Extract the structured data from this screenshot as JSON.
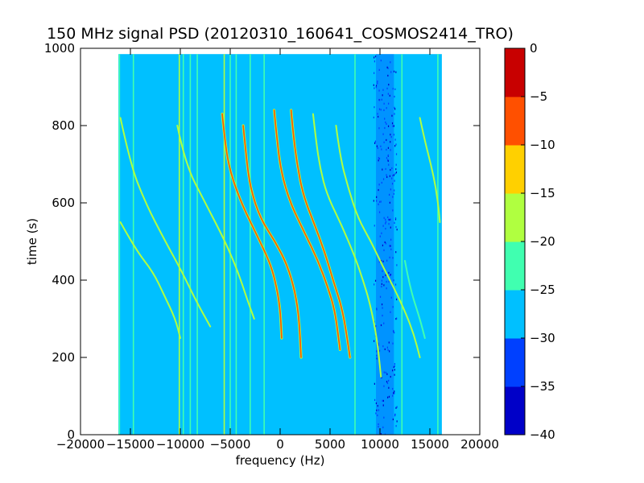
{
  "chart_data": {
    "type": "heatmap",
    "title": "150 MHz signal PSD (20120310_160641_COSMOS2414_TRO)",
    "xlabel": "frequency (Hz)",
    "ylabel": "time (s)",
    "xlim": [
      -20000,
      20000
    ],
    "ylim": [
      0,
      1000
    ],
    "x_ticks": [
      -20000,
      -15000,
      -10000,
      -5000,
      0,
      5000,
      10000,
      15000,
      20000
    ],
    "x_tick_labels": [
      "−20000",
      "−15000",
      "−10000",
      "−5000",
      "0",
      "5000",
      "10000",
      "15000",
      "20000"
    ],
    "y_ticks": [
      0,
      200,
      400,
      600,
      800,
      1000
    ],
    "y_tick_labels": [
      "0",
      "200",
      "400",
      "600",
      "800",
      "1000"
    ],
    "data_extent": {
      "freq": [
        -16200,
        16200
      ],
      "time": [
        0,
        985
      ]
    },
    "background_level": -27.5,
    "colorbar": {
      "levels": [
        -40,
        -35,
        -30,
        -25,
        -20,
        -15,
        -10,
        -5,
        0
      ],
      "tick_labels": [
        "−40",
        "−35",
        "−30",
        "−25",
        "−20",
        "−15",
        "−10",
        "−5",
        "0"
      ],
      "colors": [
        "#0000c8",
        "#0040ff",
        "#00c0ff",
        "#40ffb0",
        "#b0ff40",
        "#ffd000",
        "#ff5000",
        "#c80000"
      ]
    },
    "noise_band": {
      "freq_center": 10500,
      "width": 1800,
      "level": -31
    },
    "vertical_lines": [
      {
        "freq": -16100,
        "level": -22
      },
      {
        "freq": -14700,
        "level": -22
      },
      {
        "freq": -10100,
        "level": -17
      },
      {
        "freq": -9700,
        "level": -22
      },
      {
        "freq": -9000,
        "level": -24
      },
      {
        "freq": -8300,
        "level": -24
      },
      {
        "freq": -5600,
        "level": -20
      },
      {
        "freq": -5000,
        "level": -22
      },
      {
        "freq": -4400,
        "level": -22
      },
      {
        "freq": -3000,
        "level": -24
      },
      {
        "freq": -1600,
        "level": -22
      },
      {
        "freq": 7500,
        "level": -24
      },
      {
        "freq": 12200,
        "level": -24
      },
      {
        "freq": 15800,
        "level": -22
      }
    ],
    "drift_tracks": [
      {
        "t": [
          820,
          700,
          600,
          500,
          420,
          350,
          280
        ],
        "f": [
          -16000,
          -15000,
          -13500,
          -11500,
          -9800,
          -8500,
          -7000
        ],
        "level": -20
      },
      {
        "t": [
          550,
          480,
          420,
          360,
          300,
          250
        ],
        "f": [
          -16000,
          -14500,
          -12700,
          -11600,
          -10500,
          -10000
        ],
        "level": -20
      },
      {
        "t": [
          800,
          700,
          600,
          500,
          420,
          350,
          300
        ],
        "f": [
          -10300,
          -9500,
          -7500,
          -5500,
          -4200,
          -3300,
          -2600
        ],
        "level": -20
      },
      {
        "t": [
          830,
          750,
          680,
          600,
          520,
          450,
          400,
          330,
          250
        ],
        "f": [
          -5800,
          -5500,
          -5000,
          -3900,
          -2400,
          -1100,
          -500,
          0,
          150
        ],
        "level": -8
      },
      {
        "t": [
          800,
          720,
          640,
          560,
          500,
          440,
          370,
          300,
          200
        ],
        "f": [
          -3700,
          -3400,
          -3000,
          -2000,
          -500,
          700,
          1500,
          1900,
          2100
        ],
        "level": -8
      },
      {
        "t": [
          840,
          760,
          680,
          600,
          520,
          450,
          380,
          320,
          220
        ],
        "f": [
          -600,
          -300,
          100,
          1000,
          2500,
          3800,
          4800,
          5500,
          6000
        ],
        "level": -8
      },
      {
        "t": [
          840,
          780,
          700,
          620,
          540,
          470,
          400,
          320,
          200
        ],
        "f": [
          1100,
          1300,
          1700,
          2300,
          3500,
          4500,
          5300,
          6300,
          7000
        ],
        "level": -8
      },
      {
        "t": [
          830,
          760,
          690,
          620,
          540,
          460,
          400,
          340,
          250,
          150
        ],
        "f": [
          3300,
          3600,
          4000,
          4700,
          6200,
          7500,
          8300,
          9000,
          9700,
          10100
        ],
        "level": -20
      },
      {
        "t": [
          800,
          720,
          640,
          560,
          500,
          440,
          380,
          320,
          260,
          200
        ],
        "f": [
          5600,
          6000,
          6800,
          7800,
          9100,
          10200,
          11400,
          12500,
          13400,
          14000
        ],
        "level": -20
      },
      {
        "t": [
          820,
          760,
          700,
          640,
          580,
          550
        ],
        "f": [
          14000,
          14500,
          15100,
          15600,
          15900,
          16000
        ],
        "level": -20
      },
      {
        "t": [
          450,
          380,
          300,
          250
        ],
        "f": [
          12500,
          13000,
          14000,
          14500
        ],
        "level": -22
      }
    ]
  }
}
